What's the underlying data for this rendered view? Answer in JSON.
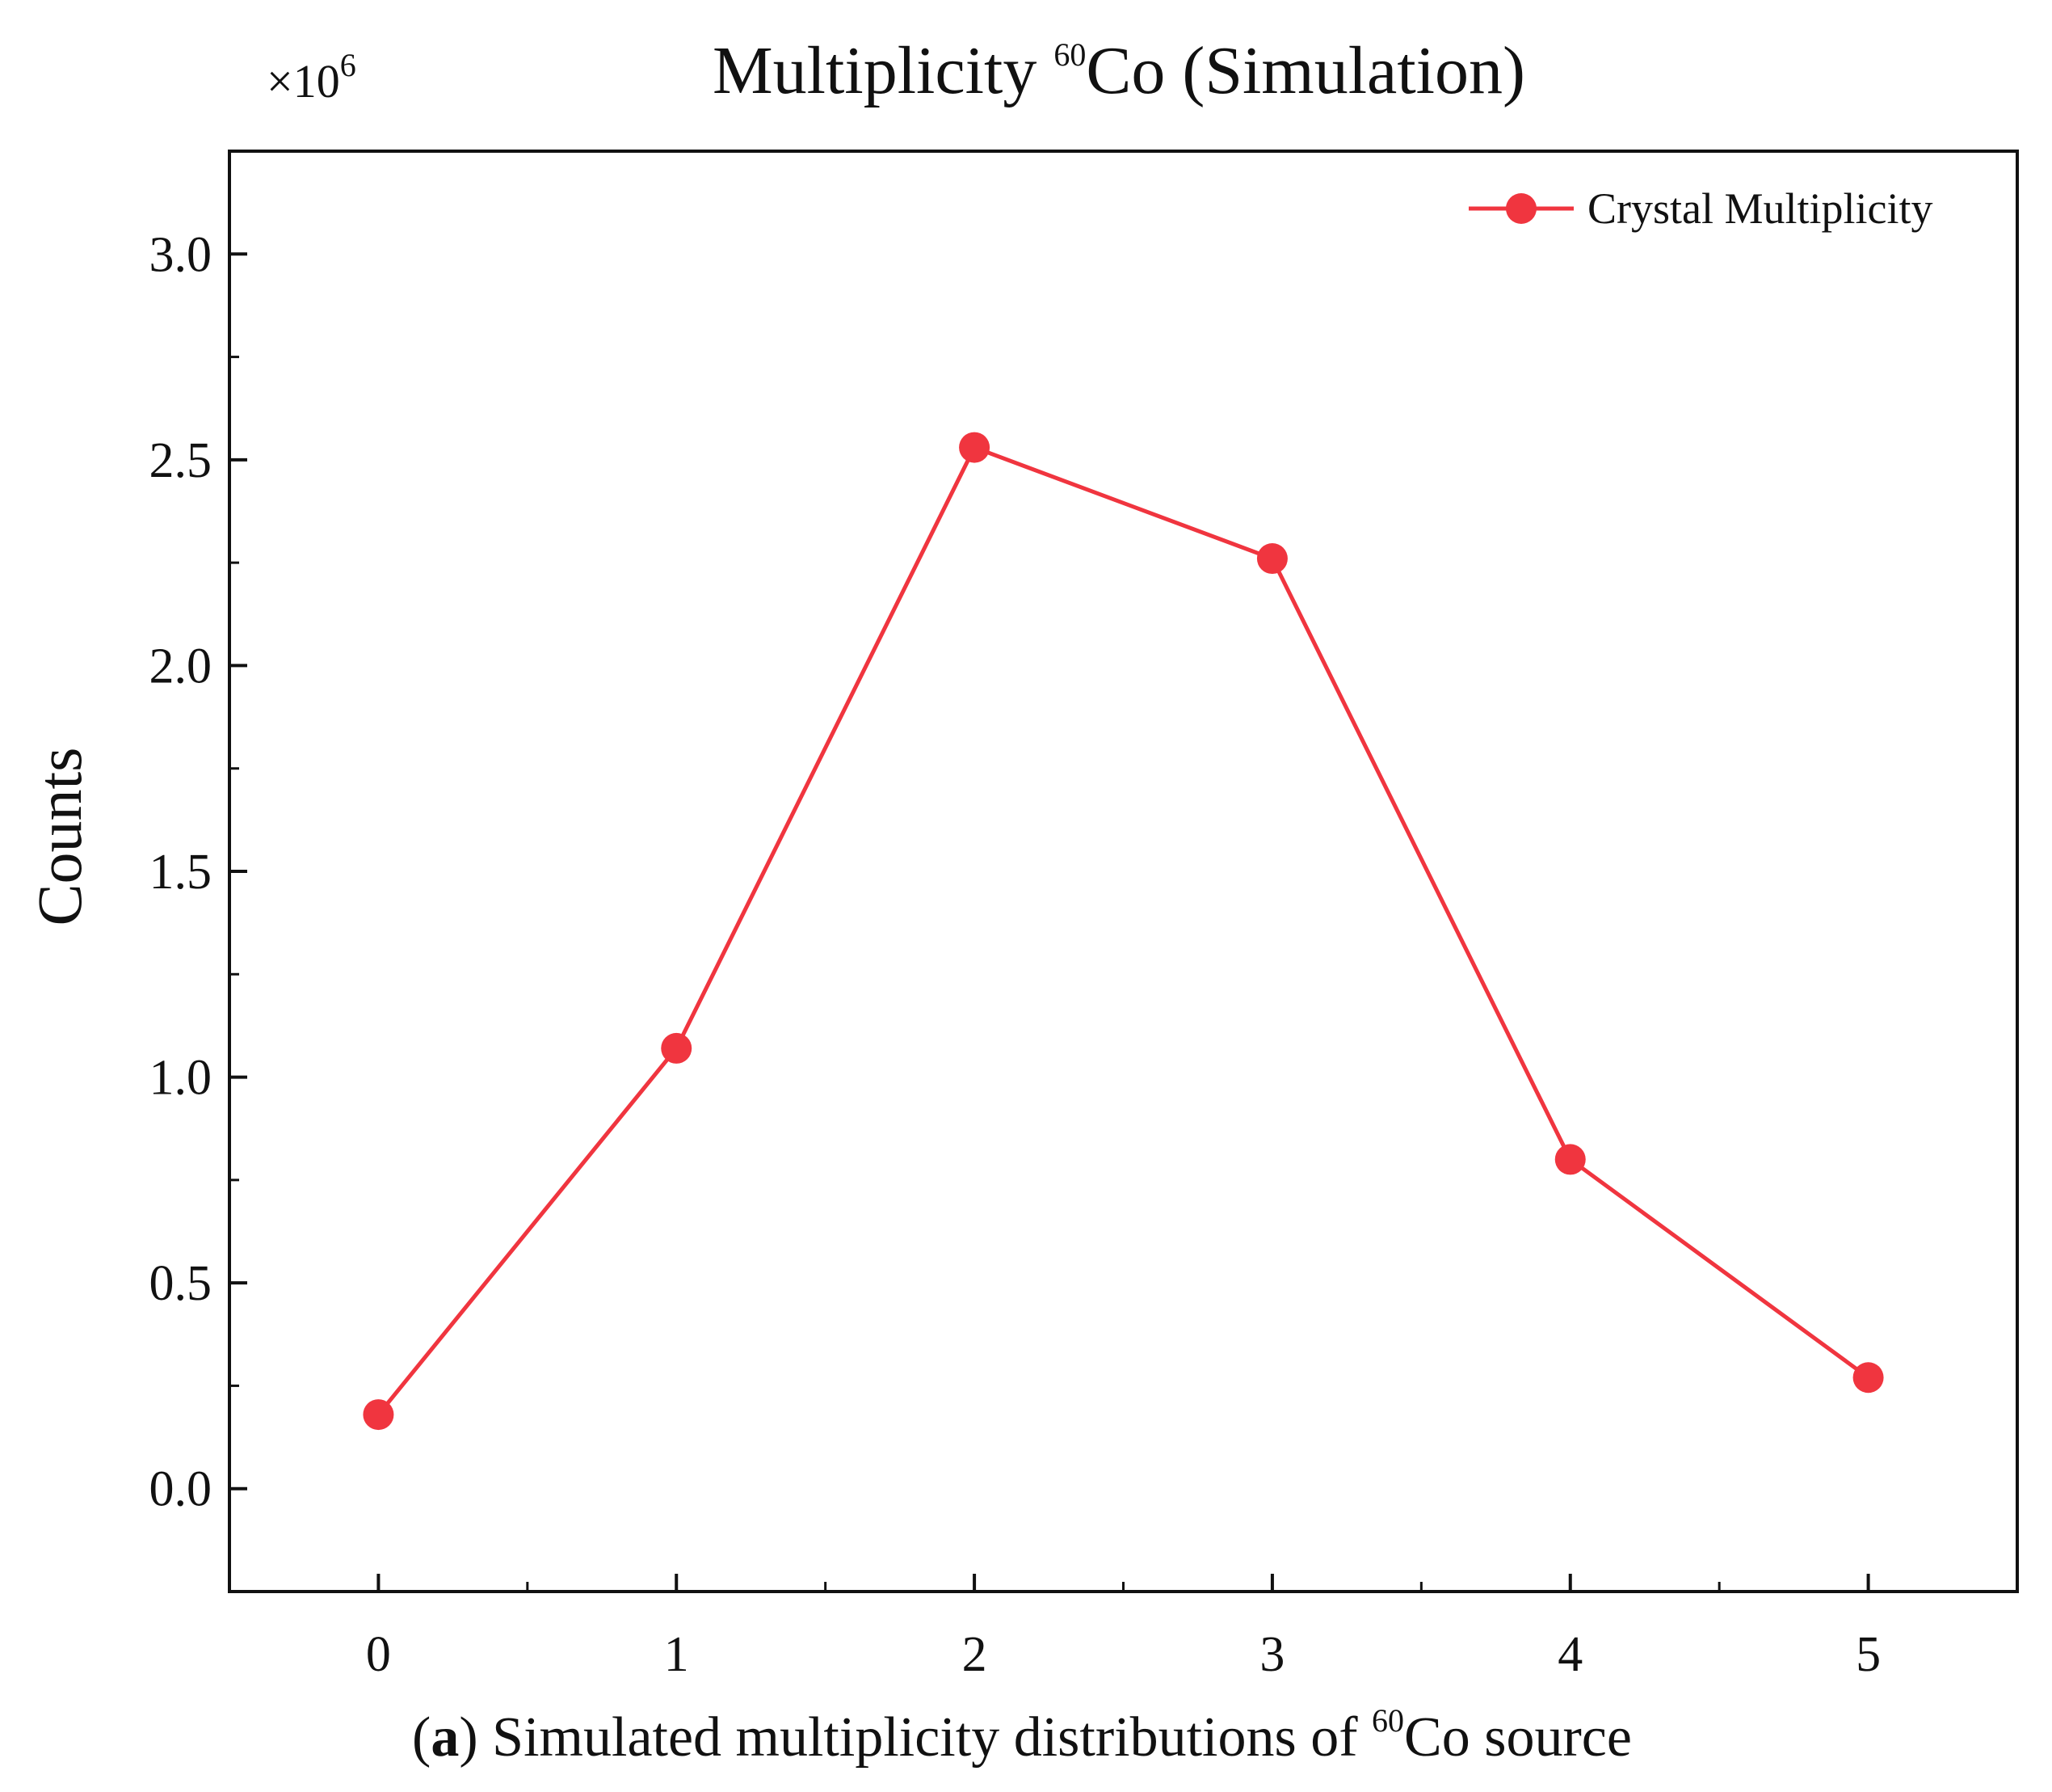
{
  "chart_data": {
    "type": "line",
    "title_main": "Multiplicity ",
    "title_sup": "60",
    "title_rest": "Co (Simulation)",
    "multiplier_prefix": "×10",
    "multiplier_exp": "6",
    "ylabel": "Counts",
    "xlabel": "",
    "x": [
      0,
      1,
      2,
      3,
      4,
      5
    ],
    "x_tick_labels": [
      "0",
      "1",
      "2",
      "3",
      "4",
      "5"
    ],
    "xlim": [
      -0.5,
      5.5
    ],
    "ylim": [
      -0.25,
      3.25
    ],
    "y_ticks": [
      0.0,
      0.5,
      1.0,
      1.5,
      2.0,
      2.5,
      3.0
    ],
    "y_tick_labels": [
      "0.0",
      "0.5",
      "1.0",
      "1.5",
      "2.0",
      "2.5",
      "3.0"
    ],
    "y_unit_multiplier": 1000000,
    "grid": false,
    "legend_position": "top-right",
    "series": [
      {
        "name": "Crystal Multiplicity",
        "color": "#f0353f",
        "values": [
          0.18,
          1.07,
          2.53,
          2.26,
          0.8,
          0.27
        ]
      }
    ],
    "caption_open": "(",
    "caption_letter": "a",
    "caption_text": ") Simulated multiplicity distributions of ",
    "caption_sup": "60",
    "caption_rest": "Co source"
  }
}
